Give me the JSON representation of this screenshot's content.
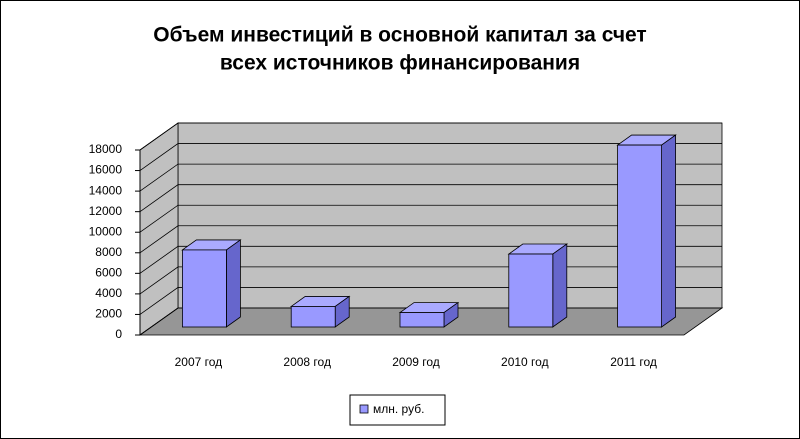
{
  "chart_data": {
    "type": "bar3d",
    "title": [
      "Объем инвестиций в основной капитал за счет",
      "всех источников финансирования"
    ],
    "categories": [
      "2007 год",
      "2008 год",
      "2009 год",
      "2010 год",
      "2011 год"
    ],
    "series": [
      {
        "name": "млн. руб.",
        "color": "#9999ff",
        "values": [
          7500,
          2000,
          1400,
          7100,
          17700
        ]
      }
    ],
    "ylim": [
      0,
      18000
    ],
    "yticks": [
      0,
      2000,
      4000,
      6000,
      8000,
      10000,
      12000,
      14000,
      16000,
      18000
    ],
    "grid": true
  }
}
